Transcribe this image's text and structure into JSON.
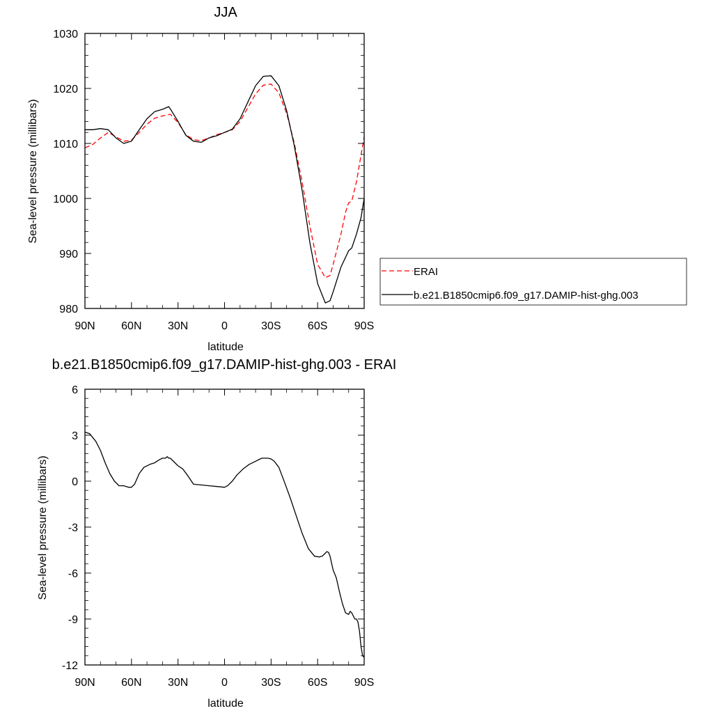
{
  "chart_data": [
    {
      "type": "line",
      "title": "JJA",
      "xlabel": "latitude",
      "ylabel": "Sea-level pressure (millibars)",
      "xlim": [
        90,
        -90
      ],
      "ylim": [
        980,
        1030
      ],
      "xticks": [
        {
          "value": 90,
          "label": "90N"
        },
        {
          "value": 60,
          "label": "60N"
        },
        {
          "value": 30,
          "label": "30N"
        },
        {
          "value": 0,
          "label": "0"
        },
        {
          "value": -30,
          "label": "30S"
        },
        {
          "value": -60,
          "label": "60S"
        },
        {
          "value": -90,
          "label": "90S"
        }
      ],
      "yticks": [
        {
          "value": 1030,
          "label": "1030"
        },
        {
          "value": 1020,
          "label": "1020"
        },
        {
          "value": 1010,
          "label": "1010"
        },
        {
          "value": 1000,
          "label": "1000"
        },
        {
          "value": 990,
          "label": "990"
        },
        {
          "value": 980,
          "label": "980"
        }
      ],
      "legend_position": "right",
      "series": [
        {
          "name": "ERAI",
          "color": "#ff0000",
          "dash": "dashed",
          "x": [
            90,
            85,
            80,
            75,
            70,
            65,
            60,
            55,
            50,
            45,
            40,
            35,
            30,
            25,
            20,
            15,
            10,
            5,
            0,
            -5,
            -10,
            -15,
            -20,
            -25,
            -30,
            -35,
            -40,
            -45,
            -50,
            -55,
            -60,
            -65,
            -68,
            -70,
            -75,
            -78,
            -80,
            -82,
            -85,
            -90
          ],
          "y": [
            1009.2,
            1009.8,
            1011.0,
            1012.0,
            1011.2,
            1010.4,
            1010.6,
            1012.0,
            1013.5,
            1014.6,
            1015.0,
            1015.3,
            1013.8,
            1011.6,
            1010.7,
            1010.5,
            1011.0,
            1011.6,
            1012.0,
            1012.5,
            1014.0,
            1016.5,
            1019.0,
            1020.6,
            1020.8,
            1019.2,
            1015.5,
            1010.0,
            1003.0,
            995.0,
            988.0,
            985.6,
            986.0,
            988.0,
            993.5,
            997.5,
            999.2,
            999.5,
            1003.0,
            1011.2
          ]
        },
        {
          "name": "b.e21.B1850cmip6.f09_g17.DAMIP-hist-ghg.003",
          "color": "#000000",
          "dash": "solid",
          "x": [
            90,
            85,
            80,
            75,
            70,
            65,
            60,
            55,
            50,
            45,
            40,
            36,
            35,
            30,
            25,
            20,
            15,
            10,
            5,
            0,
            -5,
            -10,
            -15,
            -20,
            -25,
            -30,
            -35,
            -40,
            -45,
            -50,
            -55,
            -60,
            -65,
            -68,
            -70,
            -75,
            -80,
            -82,
            -85,
            -88,
            -90
          ],
          "y": [
            1012.5,
            1012.5,
            1012.7,
            1012.5,
            1011.0,
            1010.0,
            1010.4,
            1012.5,
            1014.5,
            1015.8,
            1016.2,
            1016.7,
            1016.3,
            1014.0,
            1011.5,
            1010.4,
            1010.2,
            1011.0,
            1011.4,
            1012.0,
            1012.6,
            1014.5,
            1017.5,
            1020.5,
            1022.2,
            1022.3,
            1020.5,
            1016.0,
            1009.5,
            1001.5,
            992.0,
            984.5,
            981.0,
            981.4,
            983.0,
            987.5,
            990.5,
            991.0,
            993.5,
            996.5,
            1000.0
          ]
        }
      ]
    },
    {
      "type": "line",
      "title": "b.e21.B1850cmip6.f09_g17.DAMIP-hist-ghg.003 - ERAI",
      "xlabel": "latitude",
      "ylabel": "Sea-level pressure (millibars)",
      "xlim": [
        90,
        -90
      ],
      "ylim": [
        -12,
        6
      ],
      "xticks": [
        {
          "value": 90,
          "label": "90N"
        },
        {
          "value": 60,
          "label": "60N"
        },
        {
          "value": 30,
          "label": "30N"
        },
        {
          "value": 0,
          "label": "0"
        },
        {
          "value": -30,
          "label": "30S"
        },
        {
          "value": -60,
          "label": "60S"
        },
        {
          "value": -90,
          "label": "90S"
        }
      ],
      "yticks": [
        {
          "value": 6,
          "label": "6"
        },
        {
          "value": 3,
          "label": "3"
        },
        {
          "value": 0,
          "label": "0"
        },
        {
          "value": -3,
          "label": "-3"
        },
        {
          "value": -6,
          "label": "-6"
        },
        {
          "value": -9,
          "label": "-9"
        },
        {
          "value": -12,
          "label": "-12"
        }
      ],
      "series": [
        {
          "color": "#000000",
          "dash": "solid",
          "x": [
            90,
            87,
            83,
            80,
            77,
            74,
            71,
            68,
            65,
            62,
            60,
            58,
            55,
            52,
            48,
            45,
            42,
            40,
            38,
            37,
            36,
            35,
            33,
            30,
            27,
            24,
            20,
            15,
            10,
            5,
            0,
            -2,
            -5,
            -8,
            -12,
            -16,
            -20,
            -24,
            -28,
            -30,
            -32,
            -35,
            -38,
            -42,
            -46,
            -50,
            -54,
            -58,
            -61,
            -63,
            -65,
            -66,
            -67,
            -68,
            -70,
            -72,
            -74,
            -76,
            -78,
            -80,
            -81,
            -82,
            -84,
            -85,
            -86,
            -87,
            -88,
            -89,
            -90
          ],
          "y": [
            3.2,
            3.1,
            2.6,
            2.0,
            1.2,
            0.5,
            0.0,
            -0.3,
            -0.3,
            -0.4,
            -0.4,
            -0.2,
            0.5,
            0.9,
            1.1,
            1.2,
            1.4,
            1.5,
            1.5,
            1.6,
            1.5,
            1.5,
            1.3,
            1.0,
            0.8,
            0.4,
            -0.2,
            -0.25,
            -0.3,
            -0.35,
            -0.4,
            -0.3,
            0.0,
            0.4,
            0.8,
            1.1,
            1.3,
            1.5,
            1.5,
            1.45,
            1.3,
            0.9,
            0.1,
            -1.0,
            -2.2,
            -3.4,
            -4.4,
            -4.9,
            -4.95,
            -4.9,
            -4.7,
            -4.6,
            -4.65,
            -4.9,
            -5.8,
            -6.3,
            -7.2,
            -8.0,
            -8.6,
            -8.7,
            -8.5,
            -8.6,
            -9.0,
            -9.0,
            -9.2,
            -9.8,
            -10.8,
            -11.4,
            -11.5
          ]
        }
      ]
    }
  ]
}
